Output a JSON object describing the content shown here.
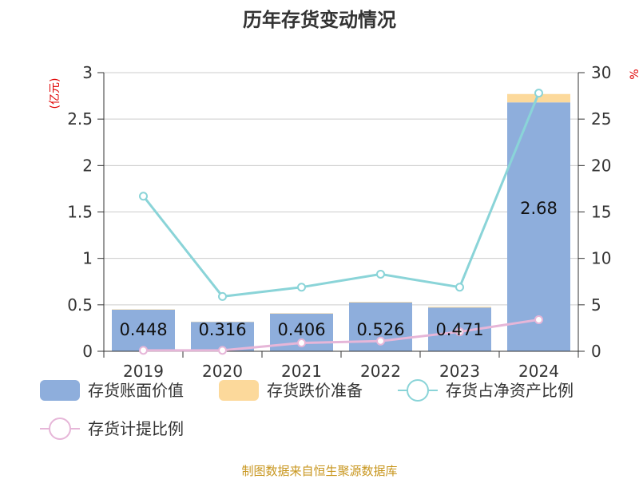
{
  "chart_data": {
    "type": "bar",
    "title": "历年存货变动情况",
    "categories": [
      "2019",
      "2020",
      "2021",
      "2022",
      "2023",
      "2024"
    ],
    "left_axis": {
      "unit": "(亿元)",
      "ylim": [
        0,
        3
      ],
      "ticks": [
        "0",
        "0.5",
        "1",
        "1.5",
        "2",
        "2.5",
        "3"
      ]
    },
    "right_axis": {
      "unit": "%",
      "ylim": [
        0,
        30
      ],
      "ticks": [
        "0",
        "5",
        "10",
        "15",
        "20",
        "25",
        "30"
      ]
    },
    "series": [
      {
        "name": "存货账面价值",
        "type": "bar",
        "axis": "left",
        "color": "#8eaedc",
        "values": [
          0.448,
          0.316,
          0.406,
          0.526,
          0.471,
          2.68
        ],
        "labels": [
          "0.448",
          "0.316",
          "0.406",
          "0.526",
          "0.471",
          "2.68"
        ]
      },
      {
        "name": "存货跌价准备",
        "type": "bar",
        "axis": "left",
        "stacked": true,
        "color": "#fcd99b",
        "values": [
          0.004,
          0.003,
          0.004,
          0.006,
          0.008,
          0.09
        ]
      },
      {
        "name": "存货占净资产比例",
        "type": "line",
        "axis": "right",
        "color": "#8ad4d8",
        "values": [
          16.7,
          5.9,
          6.9,
          8.3,
          6.9,
          27.8
        ]
      },
      {
        "name": "存货计提比例",
        "type": "line",
        "axis": "right",
        "color": "#e6b6d8",
        "values": [
          0.1,
          0.1,
          0.9,
          1.1,
          2.1,
          3.4
        ]
      }
    ],
    "grid": true,
    "legend_position": "bottom-left"
  },
  "source_text": "制图数据来自恒生聚源数据库"
}
